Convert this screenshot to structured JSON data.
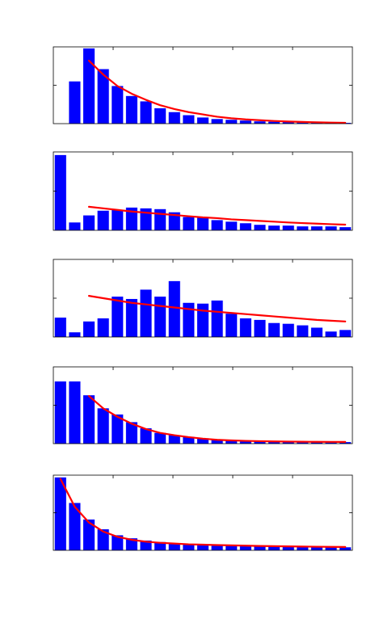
{
  "style": {
    "bar_color": "#0000ff",
    "curve_color": "#ff0000",
    "axis_color": "#000000",
    "background": "#ffffff"
  },
  "chart_data": [
    {
      "type": "bar",
      "title": "",
      "xlabel": "",
      "ylabel": "",
      "ylim": [
        0,
        1
      ],
      "x": [
        1,
        2,
        3,
        4,
        5,
        6,
        7,
        8,
        9,
        10,
        11,
        12,
        13,
        14,
        15,
        16,
        17,
        18,
        19,
        20,
        21
      ],
      "values": [
        0,
        0.55,
        0.98,
        0.71,
        0.49,
        0.36,
        0.29,
        0.2,
        0.15,
        0.11,
        0.08,
        0.06,
        0.05,
        0.04,
        0.03,
        0.025,
        0.02,
        0.015,
        0.012,
        0.01,
        0.01
      ],
      "fit_line": {
        "x": [
          3,
          4,
          5,
          6,
          7,
          8,
          9,
          10,
          11,
          12,
          13,
          14,
          15,
          16,
          17,
          18,
          19,
          20,
          21
        ],
        "y": [
          0.82,
          0.64,
          0.49,
          0.39,
          0.31,
          0.24,
          0.19,
          0.15,
          0.12,
          0.09,
          0.07,
          0.055,
          0.045,
          0.035,
          0.028,
          0.022,
          0.018,
          0.014,
          0.011
        ]
      }
    },
    {
      "type": "bar",
      "title": "",
      "xlabel": "",
      "ylabel": "",
      "ylim": [
        0,
        1
      ],
      "x": [
        1,
        2,
        3,
        4,
        5,
        6,
        7,
        8,
        9,
        10,
        11,
        12,
        13,
        14,
        15,
        16,
        17,
        18,
        19,
        20,
        21
      ],
      "values": [
        0.96,
        0.1,
        0.19,
        0.25,
        0.26,
        0.29,
        0.28,
        0.27,
        0.23,
        0.17,
        0.16,
        0.13,
        0.11,
        0.09,
        0.07,
        0.06,
        0.06,
        0.05,
        0.05,
        0.05,
        0.04
      ],
      "fit_line": {
        "x": [
          3,
          4,
          5,
          6,
          7,
          8,
          9,
          10,
          11,
          12,
          13,
          14,
          15,
          16,
          17,
          18,
          19,
          20,
          21
        ],
        "y": [
          0.3,
          0.28,
          0.26,
          0.24,
          0.225,
          0.21,
          0.195,
          0.18,
          0.165,
          0.155,
          0.14,
          0.13,
          0.12,
          0.11,
          0.1,
          0.092,
          0.085,
          0.078,
          0.072
        ]
      }
    },
    {
      "type": "bar",
      "title": "",
      "xlabel": "",
      "ylabel": "",
      "ylim": [
        0,
        1
      ],
      "x": [
        1,
        2,
        3,
        4,
        5,
        6,
        7,
        8,
        9,
        10,
        11,
        12,
        13,
        14,
        15,
        16,
        17,
        18,
        19,
        20,
        21
      ],
      "values": [
        0.25,
        0.06,
        0.2,
        0.24,
        0.52,
        0.49,
        0.61,
        0.52,
        0.72,
        0.44,
        0.43,
        0.47,
        0.3,
        0.24,
        0.22,
        0.18,
        0.17,
        0.15,
        0.12,
        0.07,
        0.09
      ],
      "fit_line": {
        "x": [
          3,
          4,
          5,
          6,
          7,
          8,
          9,
          10,
          11,
          12,
          13,
          14,
          15,
          16,
          17,
          18,
          19,
          20,
          21
        ],
        "y": [
          0.53,
          0.5,
          0.47,
          0.44,
          0.42,
          0.4,
          0.38,
          0.36,
          0.34,
          0.325,
          0.31,
          0.295,
          0.28,
          0.265,
          0.25,
          0.235,
          0.22,
          0.21,
          0.2
        ]
      }
    },
    {
      "type": "bar",
      "title": "",
      "xlabel": "",
      "ylabel": "",
      "ylim": [
        0,
        1
      ],
      "x": [
        1,
        2,
        3,
        4,
        5,
        6,
        7,
        8,
        9,
        10,
        11,
        12,
        13,
        14,
        15,
        16,
        17,
        18,
        19,
        20,
        21
      ],
      "values": [
        0.81,
        0.81,
        0.63,
        0.46,
        0.38,
        0.28,
        0.2,
        0.14,
        0.11,
        0.09,
        0.07,
        0.05,
        0.04,
        0.03,
        0.03,
        0.03,
        0.02,
        0.03,
        0.02,
        0.02,
        0.02
      ],
      "fit_line": {
        "x": [
          3,
          4,
          5,
          6,
          7,
          8,
          9,
          10,
          11,
          12,
          13,
          14,
          15,
          16,
          17,
          18,
          19,
          20,
          21
        ],
        "y": [
          0.62,
          0.46,
          0.35,
          0.26,
          0.19,
          0.14,
          0.11,
          0.085,
          0.065,
          0.05,
          0.042,
          0.036,
          0.032,
          0.029,
          0.027,
          0.025,
          0.024,
          0.023,
          0.022
        ]
      }
    },
    {
      "type": "bar",
      "title": "",
      "xlabel": "",
      "ylabel": "",
      "ylim": [
        0,
        1
      ],
      "x": [
        1,
        2,
        3,
        4,
        5,
        6,
        7,
        8,
        9,
        10,
        11,
        12,
        13,
        14,
        15,
        16,
        17,
        18,
        19,
        20,
        21
      ],
      "values": [
        0.97,
        0.63,
        0.41,
        0.28,
        0.2,
        0.16,
        0.13,
        0.11,
        0.09,
        0.08,
        0.07,
        0.07,
        0.06,
        0.06,
        0.06,
        0.05,
        0.05,
        0.05,
        0.05,
        0.04,
        0.04
      ],
      "fit_line": {
        "x": [
          1,
          2,
          3,
          4,
          5,
          6,
          7,
          8,
          9,
          10,
          11,
          12,
          13,
          14,
          15,
          16,
          17,
          18,
          19,
          20,
          21
        ],
        "y": [
          0.95,
          0.58,
          0.37,
          0.25,
          0.18,
          0.14,
          0.115,
          0.1,
          0.09,
          0.08,
          0.075,
          0.07,
          0.066,
          0.062,
          0.058,
          0.055,
          0.052,
          0.05,
          0.048,
          0.046,
          0.044
        ]
      }
    }
  ]
}
